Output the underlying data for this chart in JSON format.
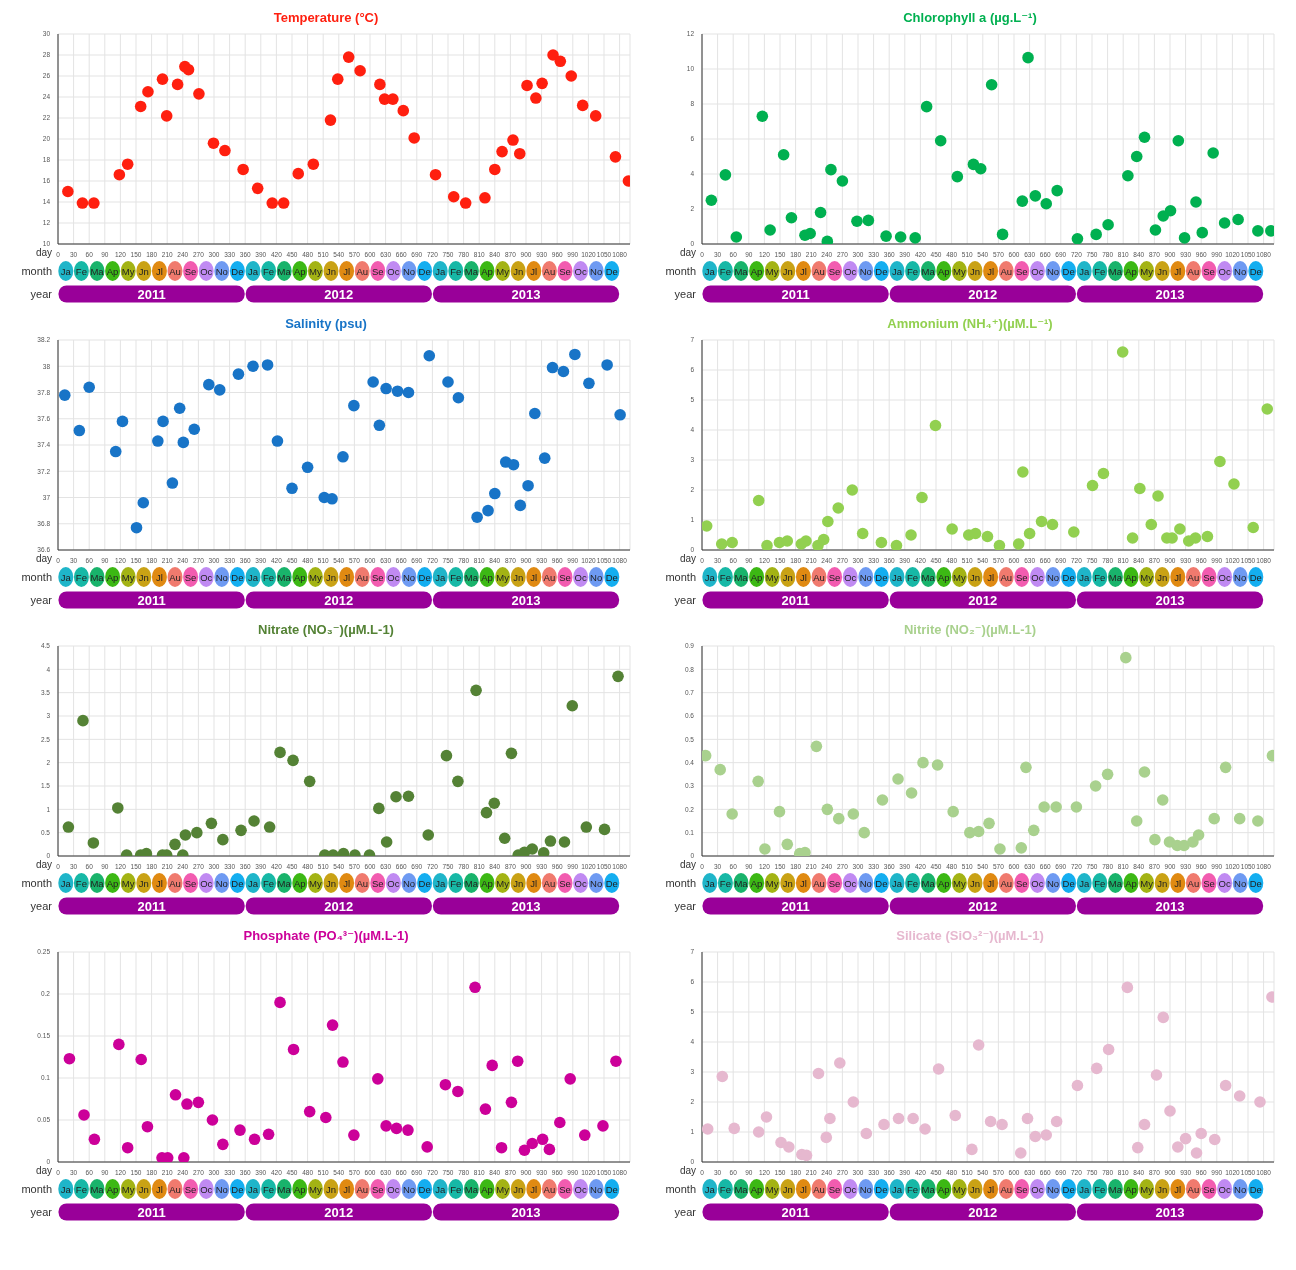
{
  "chart_data": [
    {
      "type": "scatter",
      "title": "Temperature (°C)",
      "xlabel": "day",
      "grid": true,
      "marker": "circle",
      "xlim": [
        0,
        1100
      ],
      "xticks": [
        0,
        30,
        60,
        90,
        120,
        150,
        180,
        210,
        240,
        270,
        300,
        330,
        360,
        390,
        420,
        450,
        480,
        510,
        540,
        570,
        600,
        630,
        660,
        690,
        720,
        750,
        780,
        810,
        840,
        870,
        900,
        930,
        960,
        990,
        1020,
        1050,
        1080
      ],
      "ylim": [
        10,
        30
      ],
      "yticks": [
        10,
        12,
        14,
        16,
        18,
        20,
        22,
        24,
        26,
        28,
        30
      ],
      "annotations": [
        "month",
        "Ja",
        "Fe",
        "Ma",
        "Ap",
        "My",
        "Jn",
        "Jl",
        "Au",
        "Se",
        "Oc",
        "No",
        "De",
        "Ja",
        "Fe",
        "Ma",
        "Ap",
        "My",
        "Jn",
        "Jl",
        "Au",
        "Se",
        "Oc",
        "No",
        "De",
        "Ja",
        "Fe",
        "Ma",
        "Ap",
        "My",
        "Jn",
        "Jl",
        "Au",
        "Se",
        "Oc",
        "No",
        "De",
        "year",
        "2011",
        "2012",
        "2013"
      ],
      "x": [
        19,
        47,
        69,
        118,
        134,
        159,
        173,
        201,
        209,
        230,
        244,
        251,
        271,
        299,
        321,
        356,
        384,
        412,
        434,
        462,
        491,
        524,
        538,
        559,
        581,
        619,
        628,
        644,
        664,
        685,
        726,
        761,
        784,
        821,
        840,
        854,
        875,
        888,
        902,
        919,
        931,
        952,
        966,
        987,
        1009,
        1034,
        1072,
        1097
      ],
      "series": [
        {
          "color": "#ff1f0f",
          "values": [
            15,
            13.9,
            13.9,
            16.6,
            17.6,
            23.1,
            24.5,
            25.7,
            22.2,
            25.2,
            26.9,
            26.6,
            24.3,
            19.6,
            18.9,
            17.1,
            15.3,
            13.9,
            13.9,
            16.7,
            17.6,
            21.8,
            25.7,
            27.8,
            26.5,
            25.2,
            23.8,
            23.8,
            22.7,
            20.1,
            16.6,
            14.5,
            13.9,
            14.4,
            17.1,
            18.8,
            19.9,
            18.6,
            25.1,
            23.9,
            25.3,
            28,
            27.4,
            26,
            23.2,
            22.2,
            18.3,
            16
          ]
        }
      ]
    },
    {
      "type": "scatter",
      "title": "Chlorophyll a (µg.L⁻¹)",
      "xlabel": "day",
      "grid": true,
      "marker": "circle",
      "xlim": [
        0,
        1100
      ],
      "xticks": [
        0,
        30,
        60,
        90,
        120,
        150,
        180,
        210,
        240,
        270,
        300,
        330,
        360,
        390,
        420,
        450,
        480,
        510,
        540,
        570,
        600,
        630,
        660,
        690,
        720,
        750,
        780,
        810,
        840,
        870,
        900,
        930,
        960,
        990,
        1020,
        1050,
        1080
      ],
      "ylim": [
        0,
        12
      ],
      "yticks": [
        0,
        2,
        4,
        6,
        8,
        10,
        12
      ],
      "annotations": [
        "month",
        "Ja",
        "Fe",
        "Ma",
        "Ap",
        "My",
        "Jn",
        "Jl",
        "Au",
        "Se",
        "Oc",
        "No",
        "De",
        "Ja",
        "Fe",
        "Ma",
        "Ap",
        "My",
        "Jn",
        "Jl",
        "Au",
        "Se",
        "Oc",
        "No",
        "De",
        "Ja",
        "Fe",
        "Ma",
        "Ap",
        "My",
        "Jn",
        "Jl",
        "Au",
        "Se",
        "Oc",
        "No",
        "De",
        "year",
        "2011",
        "2012",
        "2013"
      ],
      "x": [
        18,
        45,
        66,
        116,
        131,
        157,
        172,
        198,
        208,
        228,
        241,
        248,
        270,
        298,
        320,
        354,
        382,
        410,
        432,
        459,
        491,
        522,
        536,
        557,
        578,
        616,
        627,
        641,
        662,
        683,
        722,
        758,
        781,
        819,
        836,
        851,
        872,
        887,
        901,
        916,
        928,
        950,
        962,
        983,
        1005,
        1031,
        1069,
        1094
      ],
      "series": [
        {
          "color": "#00b050",
          "values": [
            2.5,
            3.95,
            0.4,
            7.3,
            0.8,
            5.1,
            1.5,
            0.5,
            0.6,
            1.8,
            0.15,
            4.25,
            3.6,
            1.3,
            1.35,
            0.45,
            0.4,
            0.35,
            7.85,
            5.9,
            3.85,
            4.55,
            4.3,
            9.1,
            0.55,
            2.45,
            10.65,
            2.75,
            2.3,
            3.05,
            0.3,
            0.55,
            1.1,
            3.9,
            5,
            6.1,
            0.8,
            1.6,
            1.9,
            5.9,
            0.35,
            2.4,
            0.65,
            5.2,
            1.2,
            1.4,
            0.75,
            0.75
          ]
        }
      ]
    },
    {
      "type": "scatter",
      "title": "Salinity (psu)",
      "xlabel": "day",
      "grid": true,
      "marker": "circle",
      "xlim": [
        0,
        1100
      ],
      "xticks": [
        0,
        30,
        60,
        90,
        120,
        150,
        180,
        210,
        240,
        270,
        300,
        330,
        360,
        390,
        420,
        450,
        480,
        510,
        540,
        570,
        600,
        630,
        660,
        690,
        720,
        750,
        780,
        810,
        840,
        870,
        900,
        930,
        960,
        990,
        1020,
        1050,
        1080
      ],
      "ylim": [
        36.6,
        38.2
      ],
      "yticks": [
        36.6,
        36.8,
        37,
        37.2,
        37.4,
        37.6,
        37.8,
        38,
        38.2
      ],
      "annotations": [
        "month",
        "Ja",
        "Fe",
        "Ma",
        "Ap",
        "My",
        "Jn",
        "Jl",
        "Au",
        "Se",
        "Oc",
        "No",
        "De",
        "Ja",
        "Fe",
        "Ma",
        "Ap",
        "My",
        "Jn",
        "Jl",
        "Au",
        "Se",
        "Oc",
        "No",
        "De",
        "Ja",
        "Fe",
        "Ma",
        "Ap",
        "My",
        "Jn",
        "Jl",
        "Au",
        "Se",
        "Oc",
        "No",
        "De",
        "year",
        "2011",
        "2012",
        "2013"
      ],
      "x": [
        13,
        41,
        60,
        111,
        124,
        151,
        164,
        192,
        202,
        220,
        234,
        241,
        262,
        290,
        311,
        347,
        375,
        403,
        422,
        450,
        480,
        512,
        527,
        548,
        569,
        606,
        618,
        631,
        653,
        674,
        714,
        750,
        770,
        806,
        827,
        840,
        861,
        876,
        889,
        904,
        917,
        936,
        951,
        972,
        994,
        1021,
        1056,
        1081
      ],
      "series": [
        {
          "color": "#1874c7",
          "values": [
            37.78,
            37.51,
            37.84,
            37.35,
            37.58,
            36.77,
            36.96,
            37.43,
            37.58,
            37.11,
            37.68,
            37.42,
            37.52,
            37.86,
            37.82,
            37.94,
            38,
            38.01,
            37.43,
            37.07,
            37.23,
            37,
            36.99,
            37.31,
            37.7,
            37.88,
            37.55,
            37.83,
            37.81,
            37.8,
            38.08,
            37.88,
            37.76,
            36.85,
            36.9,
            37.03,
            37.27,
            37.25,
            36.94,
            37.09,
            37.64,
            37.3,
            37.99,
            37.96,
            38.09,
            37.87,
            38.01,
            37.63
          ]
        }
      ]
    },
    {
      "type": "scatter",
      "title": "Ammonium (NH₄⁺)(µM.L⁻¹)",
      "xlabel": "day",
      "grid": true,
      "marker": "circle",
      "xlim": [
        0,
        1100
      ],
      "xticks": [
        0,
        30,
        60,
        90,
        120,
        150,
        180,
        210,
        240,
        270,
        300,
        330,
        360,
        390,
        420,
        450,
        480,
        510,
        540,
        570,
        600,
        630,
        660,
        690,
        720,
        750,
        780,
        810,
        840,
        870,
        900,
        930,
        960,
        990,
        1020,
        1050,
        1080
      ],
      "ylim": [
        0,
        7
      ],
      "yticks": [
        0,
        1,
        2,
        3,
        4,
        5,
        6,
        7
      ],
      "annotations": [
        "month",
        "Ja",
        "Fe",
        "Ma",
        "Ap",
        "My",
        "Jn",
        "Jl",
        "Au",
        "Se",
        "Oc",
        "No",
        "De",
        "Ja",
        "Fe",
        "Ma",
        "Ap",
        "My",
        "Jn",
        "Jl",
        "Au",
        "Se",
        "Oc",
        "No",
        "De",
        "Ja",
        "Fe",
        "Ma",
        "Ap",
        "My",
        "Jn",
        "Jl",
        "Au",
        "Se",
        "Oc",
        "No",
        "De",
        "year",
        "2011",
        "2012",
        "2013"
      ],
      "x": [
        9,
        38,
        58,
        109,
        125,
        149,
        164,
        191,
        200,
        223,
        234,
        242,
        262,
        289,
        309,
        345,
        374,
        402,
        423,
        449,
        481,
        513,
        526,
        549,
        572,
        609,
        617,
        630,
        653,
        674,
        715,
        751,
        772,
        809,
        828,
        842,
        864,
        877,
        894,
        904,
        919,
        936,
        949,
        972,
        996,
        1023,
        1060,
        1087
      ],
      "series": [
        {
          "color": "#92d050",
          "values": [
            0.8,
            0.2,
            0.25,
            1.65,
            0.15,
            0.25,
            0.3,
            0.2,
            0.3,
            0.15,
            0.35,
            0.95,
            1.4,
            2,
            0.55,
            0.25,
            0.15,
            0.5,
            1.75,
            4.15,
            0.7,
            0.5,
            0.55,
            0.45,
            0.15,
            0.2,
            2.6,
            0.55,
            0.95,
            0.85,
            0.6,
            2.15,
            2.55,
            6.6,
            0.4,
            2.05,
            0.85,
            1.8,
            0.4,
            0.4,
            0.7,
            0.3,
            0.4,
            0.45,
            2.95,
            2.2,
            0.75,
            4.7
          ]
        }
      ]
    },
    {
      "type": "scatter",
      "title": "Nitrate (NO₃⁻)(µM.L-1)",
      "xlabel": "day",
      "grid": true,
      "marker": "circle",
      "xlim": [
        0,
        1100
      ],
      "xticks": [
        0,
        30,
        60,
        90,
        120,
        150,
        180,
        210,
        240,
        270,
        300,
        330,
        360,
        390,
        420,
        450,
        480,
        510,
        540,
        570,
        600,
        630,
        660,
        690,
        720,
        750,
        780,
        810,
        840,
        870,
        900,
        930,
        960,
        990,
        1020,
        1050,
        1080
      ],
      "ylim": [
        0,
        4.5
      ],
      "yticks": [
        0,
        0.5,
        1,
        1.5,
        2,
        2.5,
        3,
        3.5,
        4,
        4.5
      ],
      "annotations": [
        "month",
        "Ja",
        "Fe",
        "Ma",
        "Ap",
        "My",
        "Jn",
        "Jl",
        "Au",
        "Se",
        "Oc",
        "No",
        "De",
        "Ja",
        "Fe",
        "Ma",
        "Ap",
        "My",
        "Jn",
        "Jl",
        "Au",
        "Se",
        "Oc",
        "No",
        "De",
        "Ja",
        "Fe",
        "Ma",
        "Ap",
        "My",
        "Jn",
        "Jl",
        "Au",
        "Se",
        "Oc",
        "No",
        "De",
        "year",
        "2011",
        "2012",
        "2013"
      ],
      "x": [
        20,
        48,
        68,
        115,
        132,
        159,
        170,
        201,
        209,
        225,
        240,
        245,
        267,
        295,
        317,
        352,
        377,
        407,
        427,
        452,
        484,
        513,
        529,
        549,
        571,
        599,
        617,
        632,
        650,
        674,
        712,
        747,
        769,
        804,
        824,
        839,
        859,
        872,
        885,
        897,
        912,
        934,
        947,
        974,
        989,
        1016,
        1051,
        1077
      ],
      "series": [
        {
          "color": "#548235",
          "values": [
            0.62,
            2.9,
            0.28,
            1.03,
            0.02,
            0.02,
            0.05,
            0.02,
            0.02,
            0.25,
            0.02,
            0.45,
            0.5,
            0.7,
            0.35,
            0.55,
            0.75,
            0.62,
            2.22,
            2.05,
            1.6,
            0.02,
            0.02,
            0.05,
            0.02,
            0.02,
            1.02,
            0.3,
            1.27,
            1.28,
            0.45,
            2.15,
            1.6,
            3.55,
            0.93,
            1.13,
            0.38,
            2.2,
            0.02,
            0.08,
            0.15,
            0.07,
            0.32,
            0.3,
            3.22,
            0.62,
            0.57,
            3.85
          ]
        }
      ]
    },
    {
      "type": "scatter",
      "title": "Nitrite (NO₂⁻)(µM.L-1)",
      "xlabel": "day",
      "grid": true,
      "marker": "circle",
      "xlim": [
        0,
        1100
      ],
      "xticks": [
        0,
        30,
        60,
        90,
        120,
        150,
        180,
        210,
        240,
        270,
        300,
        330,
        360,
        390,
        420,
        450,
        480,
        510,
        540,
        570,
        600,
        630,
        660,
        690,
        720,
        750,
        780,
        810,
        840,
        870,
        900,
        930,
        960,
        990,
        1020,
        1050,
        1080
      ],
      "ylim": [
        0,
        0.9
      ],
      "yticks": [
        0,
        0.1,
        0.2,
        0.3,
        0.4,
        0.5,
        0.6,
        0.7,
        0.8,
        0.9
      ],
      "annotations": [
        "month",
        "Ja",
        "Fe",
        "Ma",
        "Ap",
        "My",
        "Jn",
        "Jl",
        "Au",
        "Se",
        "Oc",
        "No",
        "De",
        "Ja",
        "Fe",
        "Ma",
        "Ap",
        "My",
        "Jn",
        "Jl",
        "Au",
        "Se",
        "Oc",
        "No",
        "De",
        "Ja",
        "Fe",
        "Ma",
        "Ap",
        "My",
        "Jn",
        "Jl",
        "Au",
        "Se",
        "Oc",
        "No",
        "De",
        "year",
        "2011",
        "2012",
        "2013"
      ],
      "x": [
        7,
        35,
        58,
        108,
        121,
        149,
        164,
        188,
        198,
        220,
        241,
        263,
        291,
        312,
        347,
        377,
        403,
        425,
        453,
        483,
        515,
        532,
        552,
        573,
        614,
        623,
        638,
        658,
        681,
        720,
        757,
        780,
        815,
        836,
        851,
        871,
        886,
        899,
        914,
        927,
        944,
        955,
        985,
        1007,
        1034,
        1069,
        1097
      ],
      "series": [
        {
          "color": "#a9d18e",
          "values": [
            0.43,
            0.37,
            0.18,
            0.32,
            0.03,
            0.19,
            0.05,
            0.01,
            0.015,
            0.47,
            0.2,
            0.16,
            0.18,
            0.1,
            0.24,
            0.33,
            0.27,
            0.4,
            0.39,
            0.19,
            0.1,
            0.105,
            0.14,
            0.03,
            0.035,
            0.38,
            0.11,
            0.21,
            0.21,
            0.21,
            0.3,
            0.35,
            0.85,
            0.15,
            0.36,
            0.07,
            0.24,
            0.06,
            0.045,
            0.045,
            0.06,
            0.09,
            0.16,
            0.38,
            0.16,
            0.15,
            0.43
          ]
        }
      ]
    },
    {
      "type": "scatter",
      "title": "Phosphate (PO₄³⁻)(µM.L-1)",
      "xlabel": "day",
      "grid": true,
      "marker": "circle",
      "xlim": [
        0,
        1100
      ],
      "xticks": [
        0,
        30,
        60,
        90,
        120,
        150,
        180,
        210,
        240,
        270,
        300,
        330,
        360,
        390,
        420,
        450,
        480,
        510,
        540,
        570,
        600,
        630,
        660,
        690,
        720,
        750,
        780,
        810,
        840,
        870,
        900,
        930,
        960,
        990,
        1020,
        1050,
        1080
      ],
      "ylim": [
        0,
        0.25
      ],
      "yticks": [
        0,
        0.05,
        0.1,
        0.15,
        0.2,
        0.25
      ],
      "annotations": [
        "month",
        "Ja",
        "Fe",
        "Ma",
        "Ap",
        "My",
        "Jn",
        "Jl",
        "Au",
        "Se",
        "Oc",
        "No",
        "De",
        "Ja",
        "Fe",
        "Ma",
        "Ap",
        "My",
        "Jn",
        "Jl",
        "Au",
        "Se",
        "Oc",
        "No",
        "De",
        "Ja",
        "Fe",
        "Ma",
        "Ap",
        "My",
        "Jn",
        "Jl",
        "Au",
        "Se",
        "Oc",
        "No",
        "De",
        "year",
        "2011",
        "2012",
        "2013"
      ],
      "x": [
        22,
        50,
        70,
        117,
        134,
        160,
        172,
        200,
        211,
        226,
        242,
        248,
        270,
        297,
        317,
        350,
        378,
        405,
        427,
        453,
        484,
        515,
        528,
        548,
        569,
        615,
        631,
        651,
        673,
        710,
        745,
        769,
        802,
        822,
        835,
        853,
        872,
        884,
        897,
        912,
        932,
        945,
        965,
        985,
        1013,
        1048,
        1073
      ],
      "series": [
        {
          "color": "#cc0099",
          "values": [
            0.123,
            0.056,
            0.027,
            0.14,
            0.017,
            0.122,
            0.042,
            0.005,
            0.005,
            0.08,
            0.005,
            0.069,
            0.071,
            0.05,
            0.021,
            0.038,
            0.027,
            0.033,
            0.19,
            0.134,
            0.06,
            0.053,
            0.163,
            0.119,
            0.032,
            0.099,
            0.043,
            0.04,
            0.038,
            0.018,
            0.092,
            0.084,
            0.208,
            0.063,
            0.115,
            0.017,
            0.071,
            0.12,
            0.014,
            0.022,
            0.027,
            0.015,
            0.047,
            0.099,
            0.032,
            0.043,
            0.12
          ]
        }
      ]
    },
    {
      "type": "scatter",
      "title": "Silicate (SiO₃²⁻)(µM.L-1)",
      "xlabel": "day",
      "grid": true,
      "marker": "circle",
      "xlim": [
        0,
        1100
      ],
      "xticks": [
        0,
        30,
        60,
        90,
        120,
        150,
        180,
        210,
        240,
        270,
        300,
        330,
        360,
        390,
        420,
        450,
        480,
        510,
        540,
        570,
        600,
        630,
        660,
        690,
        720,
        750,
        780,
        810,
        840,
        870,
        900,
        930,
        960,
        990,
        1020,
        1050,
        1080
      ],
      "ylim": [
        0,
        7
      ],
      "yticks": [
        0,
        1,
        2,
        3,
        4,
        5,
        6,
        7
      ],
      "annotations": [
        "month",
        "Ja",
        "Fe",
        "Ma",
        "Ap",
        "My",
        "Jn",
        "Jl",
        "Au",
        "Se",
        "Oc",
        "No",
        "De",
        "Ja",
        "Fe",
        "Ma",
        "Ap",
        "My",
        "Jn",
        "Jl",
        "Au",
        "Se",
        "Oc",
        "No",
        "De",
        "Ja",
        "Fe",
        "Ma",
        "Ap",
        "My",
        "Jn",
        "Jl",
        "Au",
        "Se",
        "Oc",
        "No",
        "De",
        "year",
        "2011",
        "2012",
        "2013"
      ],
      "x": [
        11,
        39,
        62,
        109,
        124,
        152,
        167,
        192,
        201,
        224,
        239,
        246,
        265,
        291,
        316,
        350,
        378,
        406,
        429,
        455,
        487,
        519,
        532,
        555,
        577,
        613,
        626,
        641,
        662,
        682,
        722,
        759,
        782,
        818,
        838,
        851,
        874,
        887,
        900,
        915,
        930,
        951,
        960,
        986,
        1007,
        1034,
        1073,
        1096
      ],
      "series": [
        {
          "color": "#e6b8cf",
          "values": [
            1.1,
            2.85,
            1.12,
            1,
            1.5,
            0.65,
            0.5,
            0.25,
            0.22,
            2.95,
            0.82,
            1.45,
            3.3,
            2,
            0.95,
            1.25,
            1.45,
            1.45,
            1.1,
            3.1,
            1.55,
            0.42,
            3.9,
            1.35,
            1.25,
            0.3,
            1.45,
            0.85,
            0.9,
            1.35,
            2.55,
            3.12,
            3.75,
            5.82,
            0.48,
            1.25,
            2.9,
            4.82,
            1.7,
            0.5,
            0.78,
            0.3,
            0.95,
            0.75,
            2.55,
            2.2,
            2,
            5.5
          ]
        }
      ]
    }
  ]
}
